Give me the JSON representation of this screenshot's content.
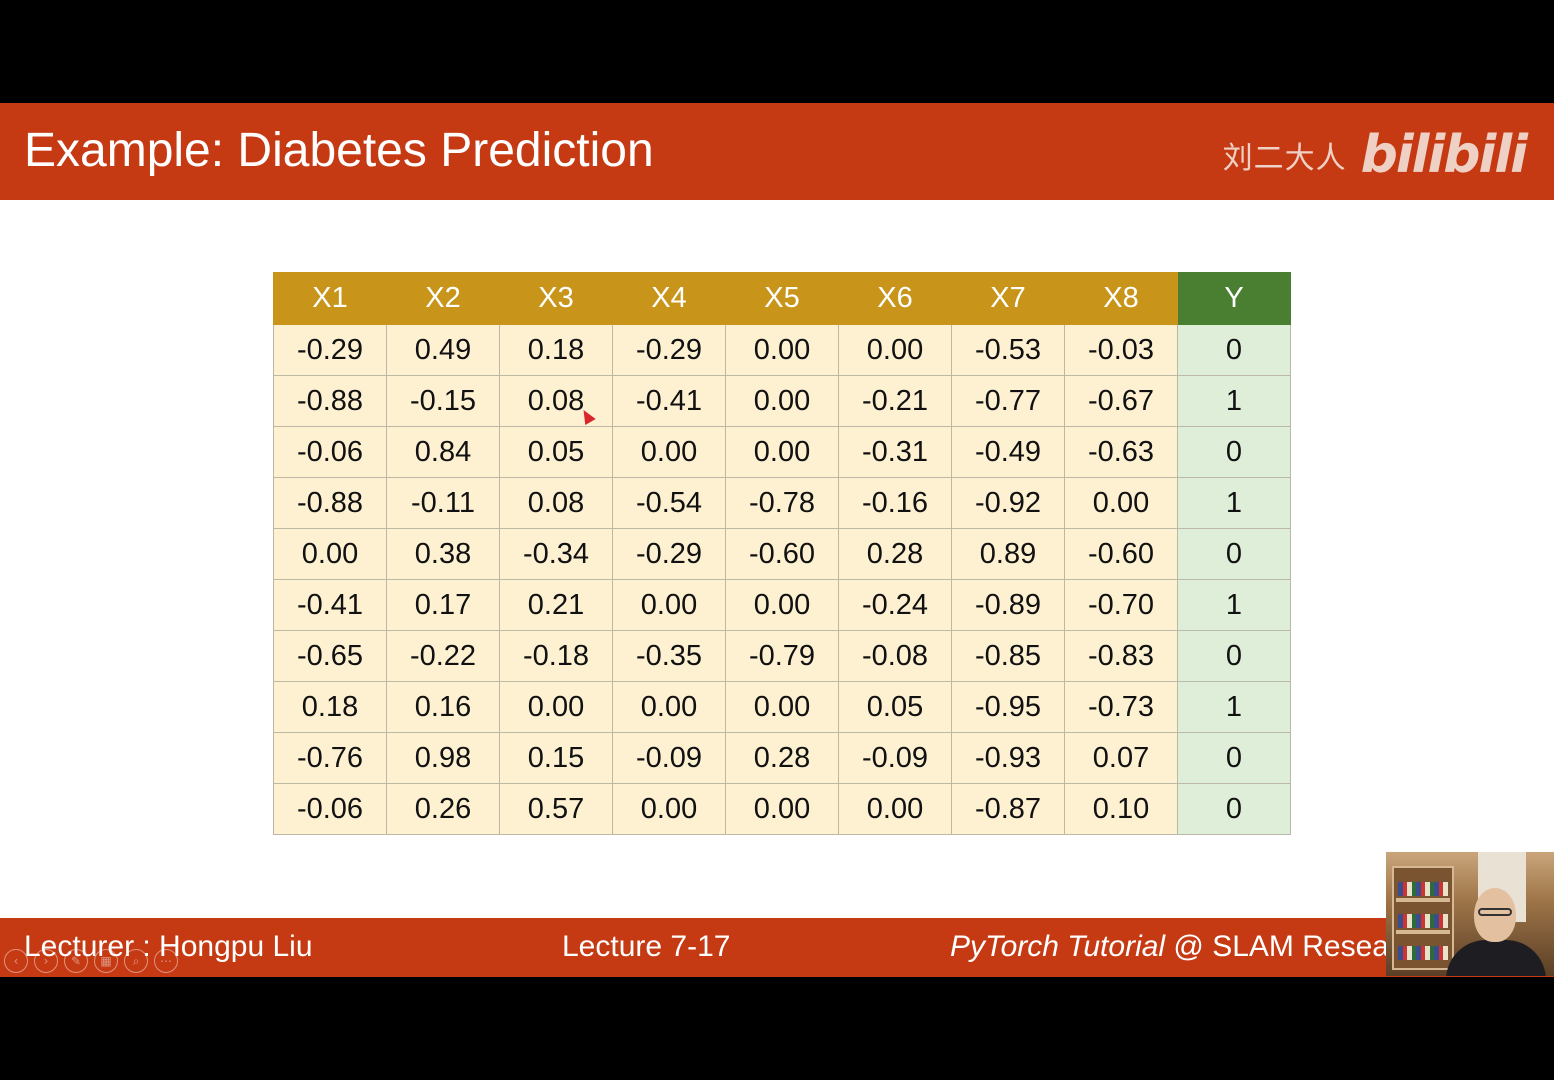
{
  "slide": {
    "title": "Example: Diabetes Prediction",
    "watermark": {
      "text": "刘二大人",
      "logo": "bilibili"
    }
  },
  "table": {
    "headers": [
      "X1",
      "X2",
      "X3",
      "X4",
      "X5",
      "X6",
      "X7",
      "X8",
      "Y"
    ],
    "rows": [
      [
        "-0.29",
        "0.49",
        "0.18",
        "-0.29",
        "0.00",
        "0.00",
        "-0.53",
        "-0.03",
        "0"
      ],
      [
        "-0.88",
        "-0.15",
        "0.08",
        "-0.41",
        "0.00",
        "-0.21",
        "-0.77",
        "-0.67",
        "1"
      ],
      [
        "-0.06",
        "0.84",
        "0.05",
        "0.00",
        "0.00",
        "-0.31",
        "-0.49",
        "-0.63",
        "0"
      ],
      [
        "-0.88",
        "-0.11",
        "0.08",
        "-0.54",
        "-0.78",
        "-0.16",
        "-0.92",
        "0.00",
        "1"
      ],
      [
        "0.00",
        "0.38",
        "-0.34",
        "-0.29",
        "-0.60",
        "0.28",
        "0.89",
        "-0.60",
        "0"
      ],
      [
        "-0.41",
        "0.17",
        "0.21",
        "0.00",
        "0.00",
        "-0.24",
        "-0.89",
        "-0.70",
        "1"
      ],
      [
        "-0.65",
        "-0.22",
        "-0.18",
        "-0.35",
        "-0.79",
        "-0.08",
        "-0.85",
        "-0.83",
        "0"
      ],
      [
        "0.18",
        "0.16",
        "0.00",
        "0.00",
        "0.00",
        "0.05",
        "-0.95",
        "-0.73",
        "1"
      ],
      [
        "-0.76",
        "0.98",
        "0.15",
        "-0.09",
        "0.28",
        "-0.09",
        "-0.93",
        "0.07",
        "0"
      ],
      [
        "-0.06",
        "0.26",
        "0.57",
        "0.00",
        "0.00",
        "0.00",
        "-0.87",
        "0.10",
        "0"
      ]
    ]
  },
  "footer": {
    "lecturer": "Lecturer : Hongpu Liu",
    "lecture": "Lecture 7-17",
    "course_italic": "PyTorch Tutorial",
    "course_rest": " @ SLAM Resea"
  },
  "controls": [
    {
      "icon": "previous-icon",
      "glyph": "‹"
    },
    {
      "icon": "next-icon",
      "glyph": "›"
    },
    {
      "icon": "pen-icon",
      "glyph": "✎"
    },
    {
      "icon": "slides-grid-icon",
      "glyph": "▦"
    },
    {
      "icon": "zoom-icon",
      "glyph": "⌕"
    },
    {
      "icon": "more-icon",
      "glyph": "⋯"
    }
  ],
  "colors": {
    "title_bar": "#c63a13",
    "header_gold": "#c8951a",
    "header_green": "#4a7f31",
    "cell_cream": "#fdf1d2",
    "cell_green": "#dfeed8"
  }
}
